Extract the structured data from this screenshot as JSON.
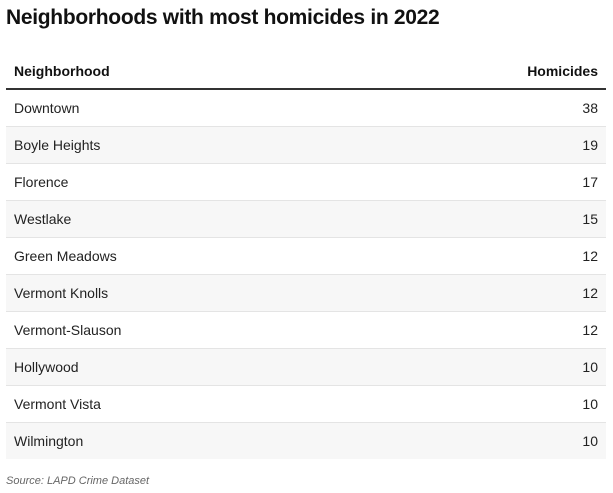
{
  "chart_data": {
    "type": "table",
    "title": "Neighborhoods with most homicides in 2022",
    "columns": [
      "Neighborhood",
      "Homicides"
    ],
    "rows": [
      {
        "name": "Downtown",
        "value": "38"
      },
      {
        "name": "Boyle Heights",
        "value": "19"
      },
      {
        "name": "Florence",
        "value": "17"
      },
      {
        "name": "Westlake",
        "value": "15"
      },
      {
        "name": "Green Meadows",
        "value": "12"
      },
      {
        "name": "Vermont Knolls",
        "value": "12"
      },
      {
        "name": "Vermont-Slauson",
        "value": "12"
      },
      {
        "name": "Hollywood",
        "value": "10"
      },
      {
        "name": "Vermont Vista",
        "value": "10"
      },
      {
        "name": "Wilmington",
        "value": "10"
      }
    ],
    "source": "Source: LAPD Crime Dataset"
  }
}
